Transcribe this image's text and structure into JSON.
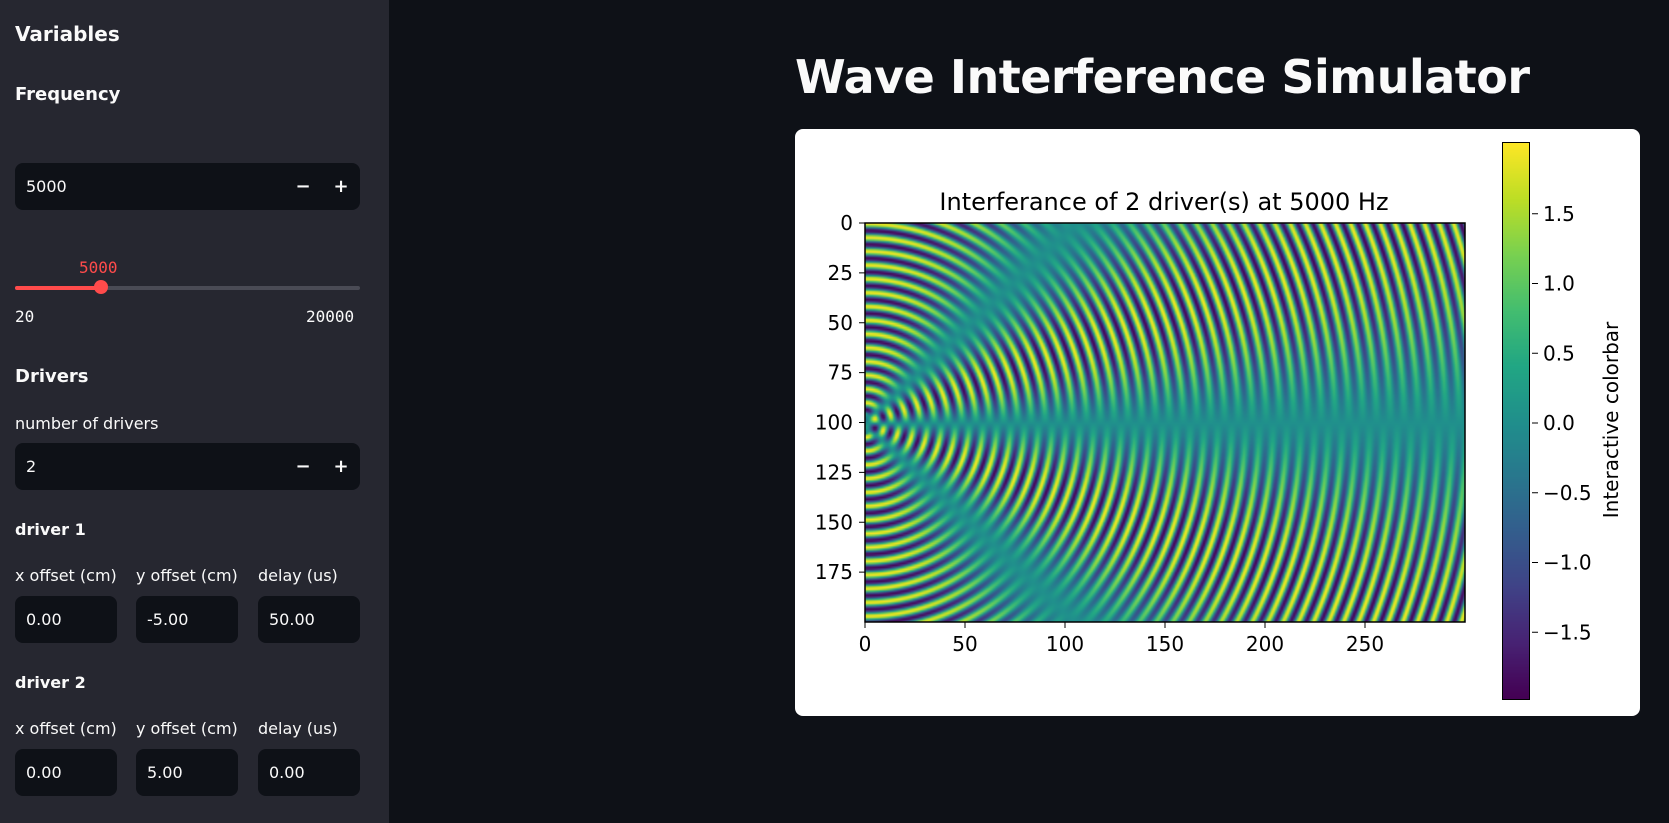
{
  "sidebar": {
    "title": "Variables",
    "frequency": {
      "heading": "Frequency",
      "input_value": "5000",
      "minus": "−",
      "plus": "+",
      "slider": {
        "value": 5000,
        "value_label": "5000",
        "min": 20,
        "max": 20000,
        "min_label": "20",
        "max_label": "20000"
      }
    },
    "drivers": {
      "heading": "Drivers",
      "count_label": "number of drivers",
      "count_value": "2",
      "minus": "−",
      "plus": "+",
      "list": [
        {
          "title": "driver 1",
          "x_label": "x offset (cm)",
          "y_label": "y offset (cm)",
          "delay_label": "delay (us)",
          "x": "0.00",
          "y": "-5.00",
          "delay": "50.00"
        },
        {
          "title": "driver 2",
          "x_label": "x offset (cm)",
          "y_label": "y offset (cm)",
          "delay_label": "delay (us)",
          "x": "0.00",
          "y": "5.00",
          "delay": "0.00"
        }
      ]
    }
  },
  "main": {
    "title": "Wave Interference Simulator"
  },
  "colors": {
    "sidebar_bg": "#262730",
    "app_bg": "#0e1117",
    "accent": "#ff4b4b"
  },
  "chart_data": {
    "type": "heatmap",
    "title": "Interferance of 2 driver(s) at 5000 Hz",
    "colormap": "viridis",
    "x_ticks": [
      "0",
      "50",
      "100",
      "150",
      "200",
      "250"
    ],
    "y_ticks": [
      "0",
      "25",
      "50",
      "75",
      "100",
      "125",
      "150",
      "175"
    ],
    "x_range": [
      0,
      300
    ],
    "y_range": [
      0,
      200
    ],
    "y_inverted": true,
    "colorbar": {
      "label": "Interactive colorbar",
      "range": [
        -2,
        2
      ],
      "ticks": [
        "1.5",
        "1.0",
        "0.5",
        "0.0",
        "−0.5",
        "−1.0",
        "−1.5"
      ],
      "tick_values": [
        1.5,
        1.0,
        0.5,
        0.0,
        -0.5,
        -1.0,
        -1.5
      ]
    },
    "sources": [
      {
        "x": 0,
        "y": 95,
        "delay_us": 50
      },
      {
        "x": 0,
        "y": 105,
        "delay_us": 0
      }
    ],
    "wavelength_px": 6.9
  }
}
